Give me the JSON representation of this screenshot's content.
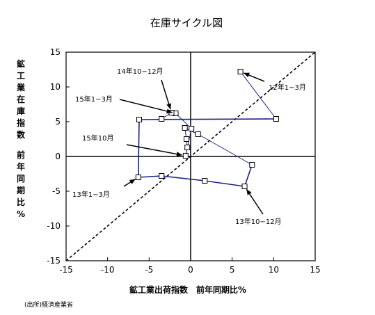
{
  "chart_data": {
    "type": "line",
    "title": "在庫サイクル図",
    "xlabel": "鉱工業出荷指数　前年同期比%",
    "ylabel": "鉱工業在庫指数　前年同期比%",
    "xlim": [
      -15,
      15
    ],
    "ylim": [
      -15,
      15
    ],
    "xticks": [
      -15,
      -10,
      -5,
      0,
      5,
      10,
      15
    ],
    "yticks": [
      -15,
      -10,
      -5,
      0,
      5,
      10,
      15
    ],
    "xtick_labels": [
      "-15",
      "-10",
      "-5",
      "0",
      "5",
      "10",
      "15"
    ],
    "ytick_labels": [
      "-15",
      "-10",
      "-5",
      "0",
      "5",
      "10",
      "15"
    ],
    "grid": false,
    "diagonal_45deg_line": true,
    "series": [
      {
        "color": "#1a237e",
        "marker": "square",
        "points": [
          {
            "x": 6.0,
            "y": 12.2
          },
          {
            "x": 10.3,
            "y": 5.4
          },
          {
            "x": -6.2,
            "y": 5.3
          },
          {
            "x": -6.3,
            "y": -3.0
          },
          {
            "x": -3.5,
            "y": -2.8
          },
          {
            "x": 1.7,
            "y": -3.5
          },
          {
            "x": 6.5,
            "y": -4.3
          },
          {
            "x": 7.4,
            "y": -1.2
          },
          {
            "x": 0.9,
            "y": 3.2
          },
          {
            "x": -0.7,
            "y": 4.1
          },
          {
            "x": -0.5,
            "y": 2.5
          },
          {
            "x": -0.4,
            "y": 1.3
          },
          {
            "x": -0.6,
            "y": 0.1
          },
          {
            "x": 0.1,
            "y": 4.0
          },
          {
            "x": -1.8,
            "y": 6.2
          },
          {
            "x": -2.3,
            "y": 6.3
          },
          {
            "x": -3.5,
            "y": 5.4
          }
        ]
      }
    ],
    "annotations": [
      {
        "text": "12年1−3月",
        "point_index": 0
      },
      {
        "text": "14年10−12月",
        "point_index": 15
      },
      {
        "text": "15年1−3月",
        "point_index": 14
      },
      {
        "text": "15年10月",
        "point_index": 12
      },
      {
        "text": "13年1−3月",
        "point_index": 3
      },
      {
        "text": "13年10−12月",
        "point_index": 6
      }
    ]
  },
  "source_note": "(出所)経済産業省"
}
